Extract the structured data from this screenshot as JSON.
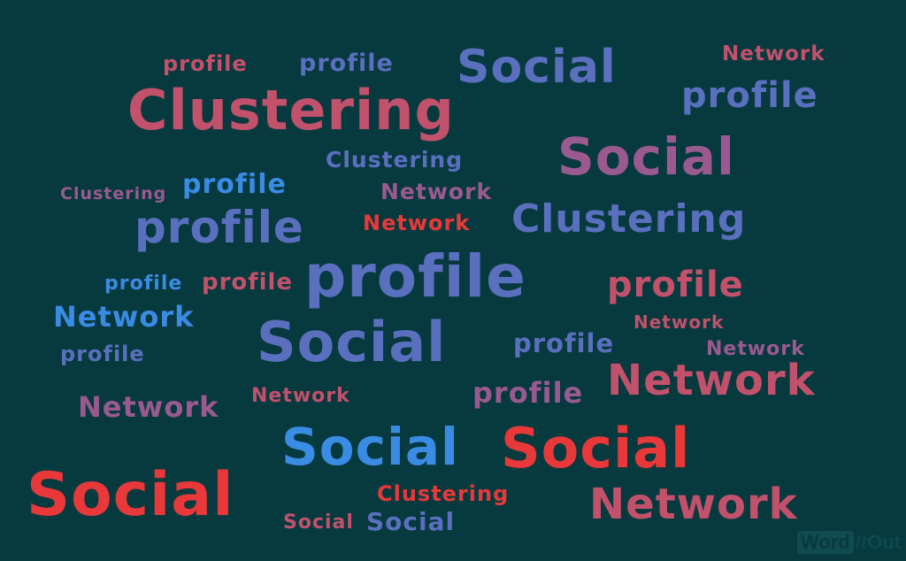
{
  "colors": {
    "background": "#073a3e",
    "rose": "#c2516b",
    "indigo": "#5a6fbe",
    "mauve": "#9a5a90",
    "blue": "#3a8be3",
    "red": "#e8383a"
  },
  "words": [
    {
      "text": "profile",
      "color": "rose"
    },
    {
      "text": "profile",
      "color": "indigo"
    },
    {
      "text": "Social",
      "color": "indigo"
    },
    {
      "text": "Network",
      "color": "rose"
    },
    {
      "text": "Clustering",
      "color": "rose"
    },
    {
      "text": "profile",
      "color": "indigo"
    },
    {
      "text": "Social",
      "color": "mauve"
    },
    {
      "text": "Clustering",
      "color": "indigo"
    },
    {
      "text": "Clustering",
      "color": "mauve"
    },
    {
      "text": "profile",
      "color": "blue"
    },
    {
      "text": "Network",
      "color": "mauve"
    },
    {
      "text": "profile",
      "color": "indigo"
    },
    {
      "text": "Network",
      "color": "red"
    },
    {
      "text": "Clustering",
      "color": "indigo"
    },
    {
      "text": "profile",
      "color": "indigo"
    },
    {
      "text": "profile",
      "color": "blue"
    },
    {
      "text": "profile",
      "color": "rose"
    },
    {
      "text": "profile",
      "color": "rose"
    },
    {
      "text": "Network",
      "color": "blue"
    },
    {
      "text": "Network",
      "color": "rose"
    },
    {
      "text": "Social",
      "color": "indigo"
    },
    {
      "text": "profile",
      "color": "indigo"
    },
    {
      "text": "profile",
      "color": "indigo"
    },
    {
      "text": "Network",
      "color": "mauve"
    },
    {
      "text": "Network",
      "color": "rose"
    },
    {
      "text": "Network",
      "color": "rose"
    },
    {
      "text": "profile",
      "color": "mauve"
    },
    {
      "text": "Network",
      "color": "mauve"
    },
    {
      "text": "Social",
      "color": "blue"
    },
    {
      "text": "Social",
      "color": "red"
    },
    {
      "text": "Social",
      "color": "red"
    },
    {
      "text": "Clustering",
      "color": "red"
    },
    {
      "text": "Network",
      "color": "rose"
    },
    {
      "text": "Social",
      "color": "rose"
    },
    {
      "text": "Social",
      "color": "indigo"
    }
  ],
  "watermark": {
    "word": "Word",
    "it": "It",
    "out": "Out"
  }
}
